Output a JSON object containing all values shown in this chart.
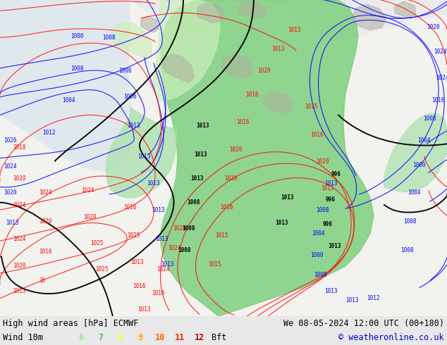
{
  "title_left": "High wind areas [hPa] ECMWF",
  "title_right": "We 08-05-2024 12:00 UTC (00+180)",
  "subtitle_left": "Wind 10m",
  "subtitle_right": "© weatheronline.co.uk",
  "legend_labels": [
    "6",
    "7",
    "8",
    "9",
    "10",
    "11",
    "12",
    "Bft"
  ],
  "legend_colors": [
    "#90ee90",
    "#32cd32",
    "#ffff00",
    "#ffa500",
    "#ff6600",
    "#ff2200",
    "#cc0000",
    "#000000"
  ],
  "bg_color": "#e8e8e8",
  "bottom_bar_color": "#d0dde8",
  "fig_width": 6.34,
  "fig_height": 4.9,
  "dpi": 100,
  "font_size_title": 8.5,
  "font_size_subtitle": 8.5,
  "map_bg_light": "#f0f0f0",
  "ocean_color": "#ddeeff",
  "land_color": "#f5f5f0",
  "green_high": "#7ecf7e",
  "green_mid": "#aae0aa",
  "green_low": "#cceebb"
}
